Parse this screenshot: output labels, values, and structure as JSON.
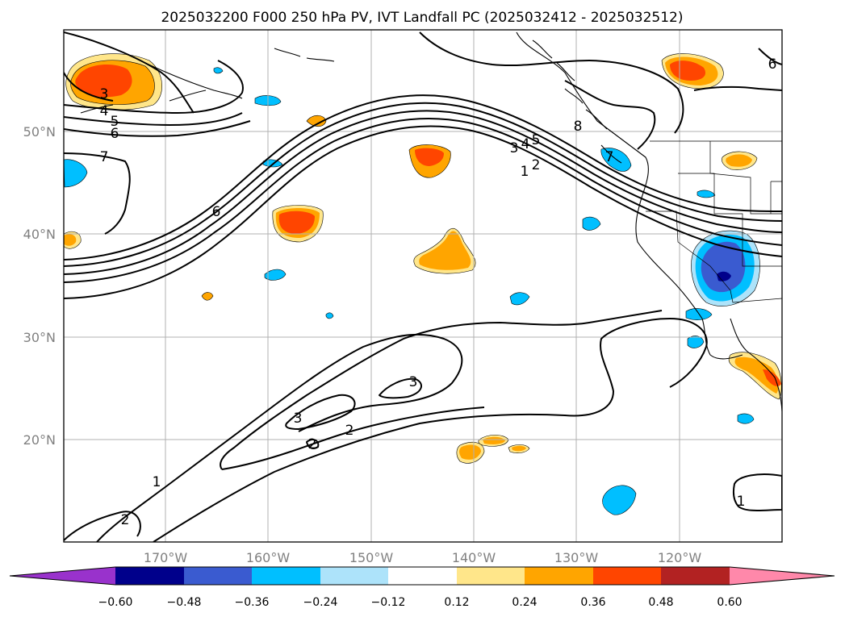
{
  "map": {
    "title": "2025032200 F000 250 hPa PV, IVT Landfall PC (2025032412 - 2025032512)",
    "longitude_ticks": [
      "170°W",
      "160°W",
      "150°W",
      "140°W",
      "130°W",
      "120°W"
    ],
    "latitude_ticks": [
      "50°N",
      "40°N",
      "30°N",
      "20°N"
    ],
    "contour_labels": [
      "3",
      "4",
      "5",
      "6",
      "7",
      "6",
      "3",
      "4",
      "5",
      "1",
      "2",
      "8",
      "7",
      "6",
      "3",
      "3",
      "2",
      "2",
      "1",
      "2",
      "1"
    ],
    "colorbar": {
      "ticks": [
        "−0.60",
        "−0.48",
        "−0.36",
        "−0.24",
        "−0.12",
        "0.12",
        "0.24",
        "0.36",
        "0.48",
        "0.60"
      ],
      "colors": [
        "#9932cc",
        "#00008b",
        "#3a5bd0",
        "#00bfff",
        "#ade3fa",
        "#ffffff",
        "#ffe68a",
        "#ffa500",
        "#ff4500",
        "#b22222",
        "#ff88aa"
      ]
    }
  }
}
